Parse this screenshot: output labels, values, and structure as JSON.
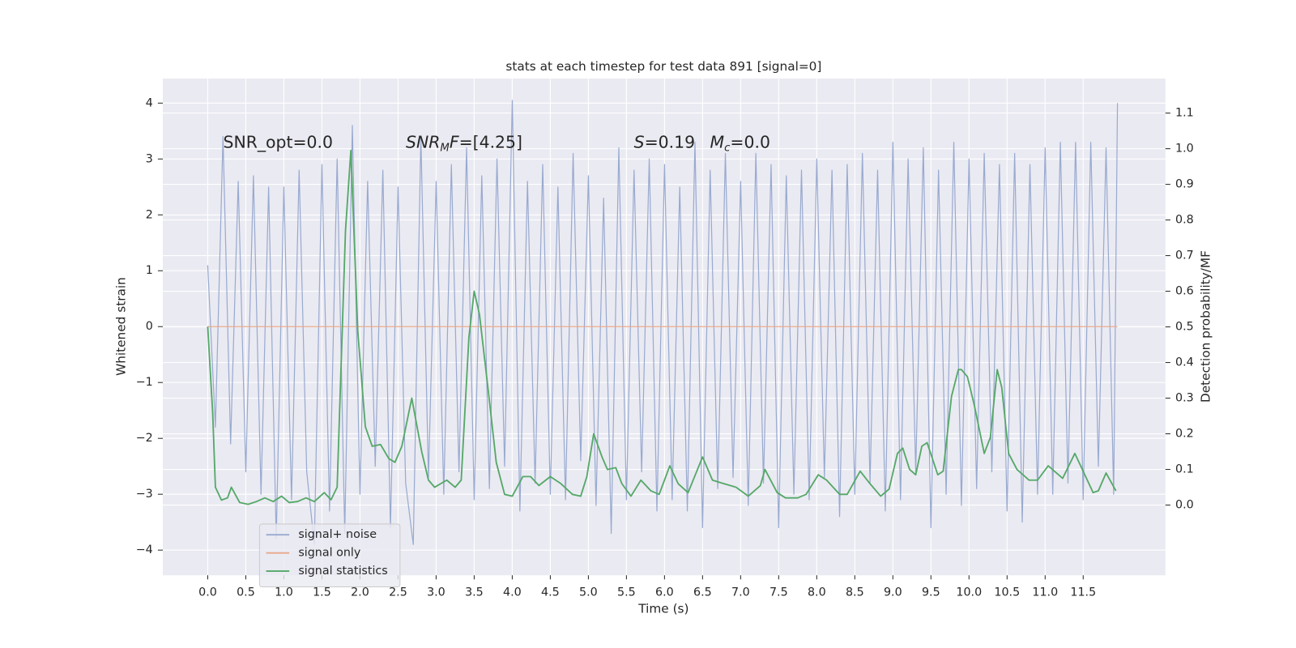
{
  "chart_data": {
    "type": "line",
    "title": "stats at each timestep for test data 891 [signal=0]",
    "x_label": "Time (s)",
    "y_label": "Whitened strain",
    "y2_label": "Detection probability/MF",
    "grid": true,
    "legend": "lower left",
    "xlim": [
      -0.59,
      12.58
    ],
    "ylim": [
      -4.45,
      4.44
    ],
    "y2lim": [
      -0.197,
      1.197
    ],
    "xticks": [
      {
        "value": 0,
        "label": "0.0"
      },
      {
        "value": 0.5,
        "label": "0.5"
      },
      {
        "value": 1,
        "label": "1.0"
      },
      {
        "value": 1.5,
        "label": "1.5"
      },
      {
        "value": 2,
        "label": "2.0"
      },
      {
        "value": 2.5,
        "label": "2.5"
      },
      {
        "value": 3,
        "label": "3.0"
      },
      {
        "value": 3.5,
        "label": "3.5"
      },
      {
        "value": 4,
        "label": "4.0"
      },
      {
        "value": 4.5,
        "label": "4.5"
      },
      {
        "value": 5,
        "label": "5.0"
      },
      {
        "value": 5.5,
        "label": "5.5"
      },
      {
        "value": 6,
        "label": "6.0"
      },
      {
        "value": 6.5,
        "label": "6.5"
      },
      {
        "value": 7,
        "label": "7.0"
      },
      {
        "value": 7.5,
        "label": "7.5"
      },
      {
        "value": 8,
        "label": "8.0"
      },
      {
        "value": 8.5,
        "label": "8.5"
      },
      {
        "value": 9,
        "label": "9.0"
      },
      {
        "value": 9.5,
        "label": "9.5"
      },
      {
        "value": 10,
        "label": "10.0"
      },
      {
        "value": 10.5,
        "label": "10.5"
      },
      {
        "value": 11,
        "label": "11.0"
      },
      {
        "value": 11.5,
        "label": "11.5"
      }
    ],
    "yticks": [
      {
        "value": -4,
        "label": "−4"
      },
      {
        "value": -3,
        "label": "−3"
      },
      {
        "value": -2,
        "label": "−2"
      },
      {
        "value": -1,
        "label": "−1"
      },
      0,
      1,
      2,
      3,
      4
    ],
    "y2ticks": [
      {
        "value": 0,
        "label": "0.0"
      },
      0.1,
      0.2,
      0.3,
      0.4,
      0.5,
      0.6,
      0.7,
      0.8,
      0.9,
      {
        "value": 1,
        "label": "1.0"
      },
      1.1
    ],
    "annotations": [
      {
        "parts": [
          "SNR_opt=0.0"
        ]
      },
      {
        "parts": [
          "SNR",
          "M",
          "F",
          "=[4.25]"
        ]
      },
      {
        "parts": [
          "S",
          "=0.19"
        ]
      },
      {
        "parts": [
          "M",
          "c",
          "=0.0"
        ]
      }
    ],
    "series": [
      {
        "name": "signal+ noise",
        "color": "#99aad0",
        "x": [
          0,
          0.1,
          0.2,
          0.3,
          0.4,
          0.5,
          0.6,
          0.7,
          0.8,
          0.9,
          1,
          1.1,
          1.2,
          1.3,
          1.4,
          1.5,
          1.6,
          1.7,
          1.8,
          1.9,
          2,
          2.1,
          2.2,
          2.3,
          2.4,
          2.5,
          2.6,
          2.7,
          2.8,
          2.9,
          3,
          3.1,
          3.2,
          3.3,
          3.4,
          3.5,
          3.6,
          3.7,
          3.8,
          3.9,
          4,
          4.1,
          4.2,
          4.3,
          4.4,
          4.5,
          4.6,
          4.7,
          4.8,
          4.9,
          5,
          5.1,
          5.2,
          5.3,
          5.4,
          5.5,
          5.6,
          5.7,
          5.8,
          5.9,
          6,
          6.1,
          6.2,
          6.3,
          6.4,
          6.5,
          6.6,
          6.7,
          6.8,
          6.9,
          7,
          7.1,
          7.2,
          7.3,
          7.4,
          7.5,
          7.6,
          7.7,
          7.8,
          7.9,
          8,
          8.1,
          8.2,
          8.3,
          8.4,
          8.5,
          8.6,
          8.7,
          8.8,
          8.9,
          9,
          9.1,
          9.2,
          9.3,
          9.4,
          9.5,
          9.6,
          9.7,
          9.8,
          9.9,
          10,
          10.1,
          10.2,
          10.3,
          10.4,
          10.5,
          10.6,
          10.7,
          10.8,
          10.9,
          11,
          11.1,
          11.2,
          11.3,
          11.4,
          11.5,
          11.6,
          11.7,
          11.8,
          11.9,
          11.95
        ],
        "values": [
          1.1,
          -1.8,
          3.4,
          -2.1,
          2.6,
          -2.6,
          2.7,
          -3.0,
          2.5,
          -3.8,
          2.5,
          -3.1,
          2.8,
          -2.6,
          -3.9,
          2.9,
          -3.3,
          3.0,
          -3.7,
          3.6,
          -3.0,
          2.6,
          -2.5,
          2.8,
          -3.6,
          2.5,
          -2.8,
          -3.9,
          3.4,
          -2.7,
          2.6,
          -3.0,
          2.9,
          -2.6,
          3.2,
          -3.1,
          2.7,
          -2.9,
          3.0,
          -2.5,
          4.05,
          -3.3,
          2.6,
          -2.8,
          2.9,
          -3.0,
          2.5,
          -3.1,
          3.1,
          -2.4,
          2.7,
          -3.2,
          2.3,
          -3.7,
          3.2,
          -3.1,
          2.8,
          -2.6,
          3.0,
          -3.3,
          2.9,
          -3.1,
          2.5,
          -3.3,
          3.3,
          -3.6,
          2.8,
          -2.9,
          3.1,
          -2.7,
          2.6,
          -3.2,
          3.1,
          -2.8,
          2.9,
          -3.6,
          2.7,
          -3.0,
          2.8,
          -3.1,
          3.0,
          -2.7,
          2.8,
          -3.4,
          2.9,
          -3.0,
          3.1,
          -2.8,
          2.8,
          -3.3,
          3.3,
          -3.1,
          3.0,
          -2.6,
          3.2,
          -3.6,
          2.8,
          -3.0,
          3.3,
          -3.2,
          3.0,
          -2.9,
          3.1,
          -2.6,
          2.9,
          -3.3,
          3.1,
          -3.5,
          2.9,
          -3.0,
          3.2,
          -3.0,
          3.3,
          -2.8,
          3.3,
          -3.1,
          3.3,
          -2.5,
          3.2,
          -3.0,
          4.0
        ]
      },
      {
        "name": "signal only",
        "color": "#e8a889",
        "x": [
          0,
          11.95
        ],
        "values": [
          0,
          0
        ]
      },
      {
        "name": "signal statistics",
        "color": "#55a868",
        "axis": "y2",
        "x": [
          0,
          0.065,
          0.1,
          0.18,
          0.26,
          0.31,
          0.42,
          0.53,
          0.64,
          0.75,
          0.86,
          0.97,
          1.07,
          1.18,
          1.29,
          1.4,
          1.53,
          1.62,
          1.7,
          1.81,
          1.88,
          1.97,
          2.07,
          2.16,
          2.27,
          2.38,
          2.46,
          2.55,
          2.68,
          2.81,
          2.9,
          2.98,
          3.14,
          3.25,
          3.33,
          3.43,
          3.5,
          3.57,
          3.68,
          3.79,
          3.9,
          4.0,
          4.14,
          4.24,
          4.35,
          4.5,
          4.64,
          4.79,
          4.9,
          4.98,
          5.07,
          5.18,
          5.25,
          5.36,
          5.44,
          5.56,
          5.69,
          5.82,
          5.93,
          6.07,
          6.18,
          6.31,
          6.5,
          6.63,
          6.78,
          6.94,
          7.1,
          7.26,
          7.32,
          7.48,
          7.59,
          7.75,
          7.86,
          8.02,
          8.13,
          8.3,
          8.4,
          8.57,
          8.7,
          8.84,
          8.95,
          9.06,
          9.13,
          9.22,
          9.3,
          9.38,
          9.45,
          9.59,
          9.66,
          9.77,
          9.86,
          9.9,
          9.98,
          10.07,
          10.2,
          10.28,
          10.37,
          10.43,
          10.52,
          10.63,
          10.79,
          10.9,
          11.04,
          11.23,
          11.39,
          11.5,
          11.63,
          11.7,
          11.8,
          11.93
        ],
        "values": [
          0.501,
          0.26,
          0.05,
          0.014,
          0.02,
          0.05,
          0.007,
          0.002,
          0.01,
          0.02,
          0.01,
          0.025,
          0.007,
          0.01,
          0.02,
          0.01,
          0.035,
          0.015,
          0.05,
          0.77,
          0.995,
          0.49,
          0.22,
          0.165,
          0.17,
          0.13,
          0.12,
          0.165,
          0.3,
          0.15,
          0.07,
          0.05,
          0.07,
          0.05,
          0.07,
          0.47,
          0.6,
          0.535,
          0.33,
          0.12,
          0.03,
          0.025,
          0.08,
          0.08,
          0.055,
          0.08,
          0.06,
          0.03,
          0.025,
          0.08,
          0.2,
          0.135,
          0.1,
          0.105,
          0.06,
          0.025,
          0.07,
          0.04,
          0.03,
          0.11,
          0.06,
          0.035,
          0.135,
          0.07,
          0.06,
          0.05,
          0.025,
          0.055,
          0.1,
          0.035,
          0.02,
          0.02,
          0.03,
          0.085,
          0.07,
          0.03,
          0.03,
          0.095,
          0.06,
          0.025,
          0.045,
          0.145,
          0.16,
          0.1,
          0.085,
          0.165,
          0.175,
          0.085,
          0.095,
          0.305,
          0.38,
          0.38,
          0.36,
          0.28,
          0.145,
          0.19,
          0.38,
          0.33,
          0.145,
          0.1,
          0.07,
          0.07,
          0.11,
          0.075,
          0.145,
          0.095,
          0.035,
          0.04,
          0.09,
          0.04
        ]
      }
    ]
  }
}
